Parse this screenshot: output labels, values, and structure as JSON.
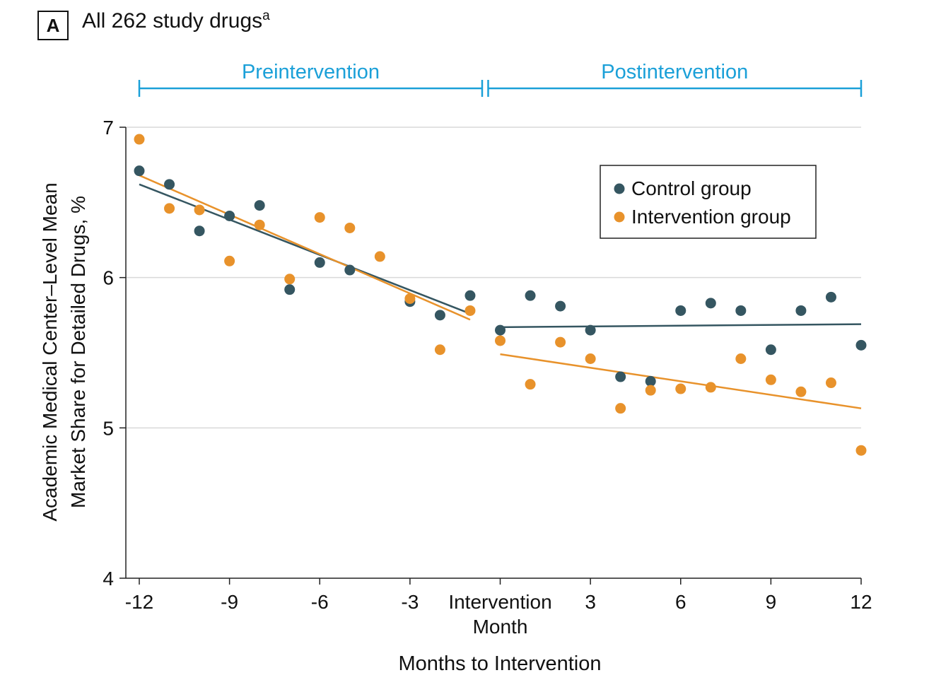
{
  "panel": {
    "letter": "A",
    "title": "All 262 study drugs",
    "title_superscript": "a"
  },
  "chart_data": {
    "type": "scatter",
    "xlabel": "Months to Intervention",
    "ylabel_line1": "Academic Medical Center–Level Mean",
    "ylabel_line2": "Market Share for Detailed Drugs, %",
    "xlim": [
      -12,
      12
    ],
    "ylim": [
      4,
      7
    ],
    "x_ticks": [
      {
        "value": -12,
        "label": "-12"
      },
      {
        "value": -9,
        "label": "-9"
      },
      {
        "value": -6,
        "label": "-6"
      },
      {
        "value": -3,
        "label": "-3"
      },
      {
        "value": 0,
        "label": "Intervention",
        "label2": "Month"
      },
      {
        "value": 3,
        "label": "3"
      },
      {
        "value": 6,
        "label": "6"
      },
      {
        "value": 9,
        "label": "9"
      },
      {
        "value": 12,
        "label": "12"
      }
    ],
    "y_ticks": [
      {
        "value": 4,
        "label": "4"
      },
      {
        "value": 5,
        "label": "5"
      },
      {
        "value": 6,
        "label": "6"
      },
      {
        "value": 7,
        "label": "7"
      }
    ],
    "grid": "horizontal",
    "periods": [
      {
        "label": "Preintervention",
        "from": -12,
        "to": -0.6
      },
      {
        "label": "Postintervention",
        "from": -0.4,
        "to": 12
      }
    ],
    "legend_position": "top-right",
    "colors": {
      "control": "#355661",
      "intervention": "#E8922B",
      "period": "#1BA0D8",
      "grid": "#d9d9d9",
      "axis": "#222222"
    },
    "series": [
      {
        "name": "Control group",
        "color": "#355661",
        "points": [
          [
            -12,
            6.71
          ],
          [
            -11,
            6.62
          ],
          [
            -10,
            6.31
          ],
          [
            -9,
            6.41
          ],
          [
            -8,
            6.48
          ],
          [
            -7,
            5.92
          ],
          [
            -6,
            6.1
          ],
          [
            -5,
            6.05
          ],
          [
            -3,
            5.84
          ],
          [
            -2,
            5.75
          ],
          [
            -1,
            5.88
          ],
          [
            0,
            5.65
          ],
          [
            1,
            5.88
          ],
          [
            2,
            5.81
          ],
          [
            3,
            5.65
          ],
          [
            4,
            5.34
          ],
          [
            5,
            5.31
          ],
          [
            6,
            5.78
          ],
          [
            7,
            5.83
          ],
          [
            8,
            5.78
          ],
          [
            9,
            5.52
          ],
          [
            10,
            5.78
          ],
          [
            11,
            5.87
          ],
          [
            12,
            5.55
          ]
        ],
        "trend_pre": [
          [
            -12,
            6.62
          ],
          [
            -1,
            5.76
          ]
        ],
        "trend_post": [
          [
            0,
            5.67
          ],
          [
            12,
            5.69
          ]
        ]
      },
      {
        "name": "Intervention group",
        "color": "#E8922B",
        "points": [
          [
            -12,
            6.92
          ],
          [
            -11,
            6.46
          ],
          [
            -10,
            6.45
          ],
          [
            -9,
            6.11
          ],
          [
            -8,
            6.35
          ],
          [
            -7,
            5.99
          ],
          [
            -6,
            6.4
          ],
          [
            -5,
            6.33
          ],
          [
            -4,
            6.14
          ],
          [
            -3,
            5.86
          ],
          [
            -2,
            5.52
          ],
          [
            -1,
            5.78
          ],
          [
            0,
            5.58
          ],
          [
            1,
            5.29
          ],
          [
            2,
            5.57
          ],
          [
            3,
            5.46
          ],
          [
            4,
            5.13
          ],
          [
            5,
            5.25
          ],
          [
            6,
            5.26
          ],
          [
            7,
            5.27
          ],
          [
            8,
            5.46
          ],
          [
            9,
            5.32
          ],
          [
            10,
            5.24
          ],
          [
            11,
            5.3
          ],
          [
            12,
            4.85
          ]
        ],
        "trend_pre": [
          [
            -12,
            6.68
          ],
          [
            -1,
            5.72
          ]
        ],
        "trend_post": [
          [
            0,
            5.49
          ],
          [
            12,
            5.13
          ]
        ]
      }
    ]
  }
}
